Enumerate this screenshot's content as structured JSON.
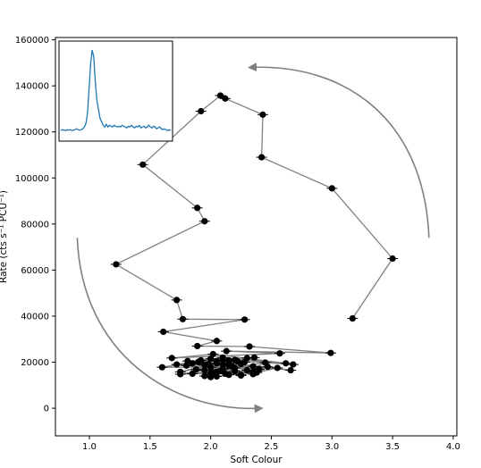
{
  "chart_data": {
    "type": "scatter",
    "xlabel": "Soft Colour",
    "ylabel": "Rate (cts s⁻¹ PCU⁻¹)",
    "xlim": [
      0.72,
      4.03
    ],
    "ylim": [
      -12000,
      161000
    ],
    "x_ticks": [
      1.0,
      1.5,
      2.0,
      2.5,
      3.0,
      3.5,
      4.0
    ],
    "x_tick_labels": [
      "1.0",
      "1.5",
      "2.0",
      "2.5",
      "3.0",
      "3.5",
      "4.0"
    ],
    "y_ticks": [
      0,
      20000,
      40000,
      60000,
      80000,
      100000,
      120000,
      140000,
      160000
    ],
    "y_tick_labels": [
      "0",
      "20000",
      "40000",
      "60000",
      "80000",
      "100000",
      "120000",
      "140000",
      "160000"
    ],
    "grid": false,
    "colors": {
      "points": "#000000",
      "track": "#808080",
      "arrow": "#808080",
      "inset_line": "#1f77b4"
    },
    "series": [
      {
        "x": [
          3.17,
          3.5,
          3.0,
          2.42,
          2.43,
          2.12,
          2.08,
          1.92,
          1.44,
          1.89,
          1.95,
          1.22,
          1.72,
          1.77,
          2.28,
          1.61,
          2.05,
          1.89,
          2.32,
          2.99,
          2.13,
          2.57,
          1.68,
          2.02,
          2.62,
          2.1,
          1.6,
          2.47,
          2.66,
          1.81,
          2.2,
          2.36,
          1.75,
          2.05,
          2.55,
          2.38,
          1.72,
          2.0,
          2.68,
          2.15,
          1.95,
          2.35,
          1.85,
          2.1,
          2.45,
          2.25,
          1.9,
          2.0,
          2.3,
          2.15,
          1.8,
          2.05,
          2.2,
          1.95,
          2.4,
          2.1,
          1.88,
          2.28,
          2.02,
          2.18,
          1.92,
          2.35,
          2.08,
          1.98,
          2.22,
          2.12,
          2.0,
          2.25,
          1.85,
          2.05,
          2.15,
          1.95,
          2.3,
          2.1,
          2.0,
          2.2,
          2.4,
          1.9,
          2.05,
          2.15,
          2.35,
          1.75,
          2.25,
          2.1
        ],
        "y": [
          39000,
          65000,
          95500,
          109000,
          127500,
          134500,
          135800,
          129000,
          105800,
          87000,
          81200,
          62500,
          47000,
          38700,
          38500,
          33200,
          29200,
          27000,
          26800,
          24000,
          24800,
          23800,
          21800,
          23500,
          19500,
          22000,
          17800,
          18000,
          16500,
          20500,
          21000,
          22000,
          15800,
          19500,
          17500,
          15500,
          19000,
          21500,
          19000,
          20800,
          16500,
          18200,
          15000,
          17000,
          19800,
          14500,
          20200,
          13500,
          21800,
          19500,
          18500,
          20500,
          16000,
          18800,
          17000,
          21000,
          16800,
          20000,
          15500,
          18000,
          20800,
          14800,
          16200,
          19200,
          20500,
          15000,
          17800,
          14200,
          19500,
          15800,
          18500,
          14000,
          16500,
          19000,
          15200,
          17500,
          16800,
          20000,
          13800,
          14500,
          15600,
          14800,
          19200,
          17000
        ]
      }
    ],
    "arrows": [
      {
        "from": [
          3.8,
          74000
        ],
        "to": [
          2.32,
          148000
        ]
      },
      {
        "from": [
          0.9,
          74000
        ],
        "to": [
          2.42,
          0
        ]
      }
    ],
    "inset": {
      "type": "line",
      "values": [
        0.08,
        0.09,
        0.085,
        0.08,
        0.09,
        0.085,
        0.09,
        0.08,
        0.085,
        0.09,
        0.1,
        0.09,
        0.085,
        0.09,
        0.1,
        0.12,
        0.16,
        0.28,
        0.55,
        0.85,
        1.0,
        0.92,
        0.62,
        0.42,
        0.32,
        0.22,
        0.18,
        0.14,
        0.12,
        0.15,
        0.12,
        0.14,
        0.13,
        0.12,
        0.14,
        0.13,
        0.12,
        0.13,
        0.12,
        0.14,
        0.13,
        0.12,
        0.11,
        0.13,
        0.12,
        0.14,
        0.12,
        0.11,
        0.13,
        0.12,
        0.14,
        0.11,
        0.12,
        0.13,
        0.11,
        0.12,
        0.14,
        0.12,
        0.11,
        0.13,
        0.12,
        0.1,
        0.11,
        0.12,
        0.1,
        0.09,
        0.1,
        0.09,
        0.08,
        0.09,
        0.08
      ]
    }
  }
}
